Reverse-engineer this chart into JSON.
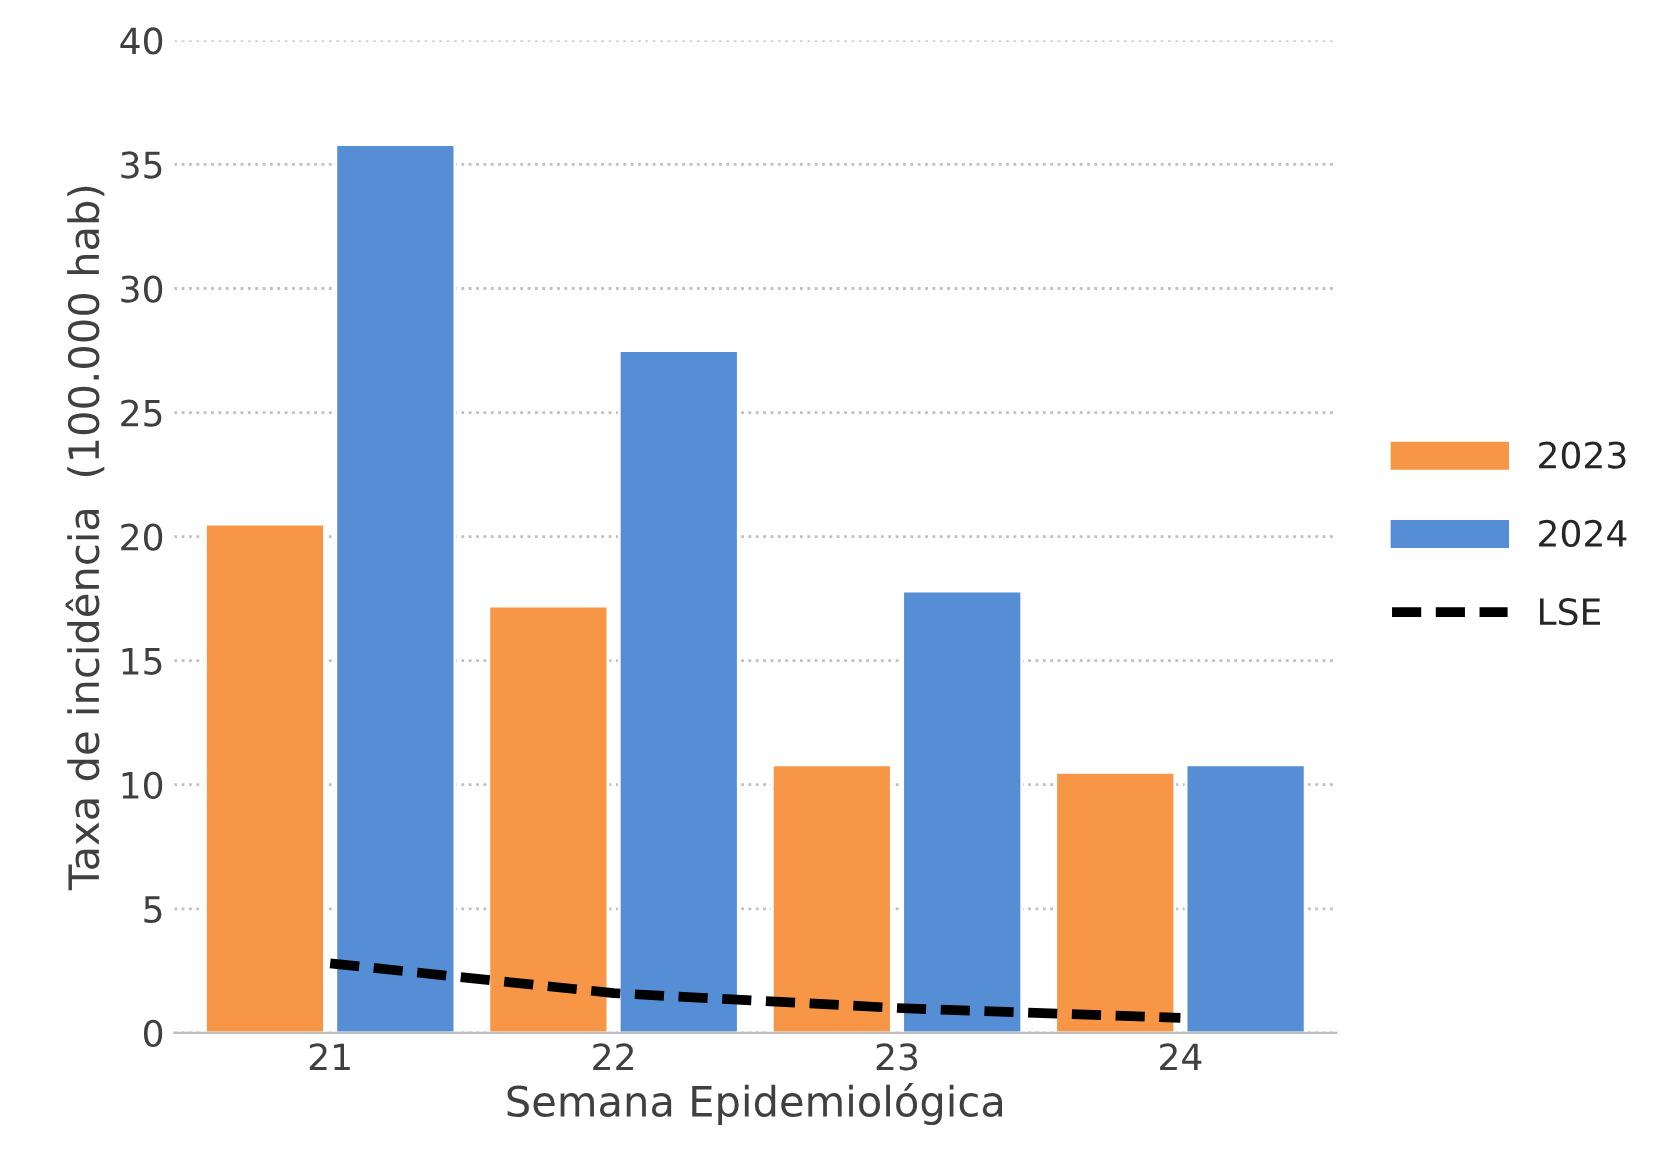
{
  "chart_data": {
    "type": "bar",
    "xlabel": "Semana Epidemiológica",
    "ylabel": "Taxa de incidência  (100.000 hab)",
    "categories": [
      "21",
      "22",
      "23",
      "24"
    ],
    "series": [
      {
        "name": "2023",
        "color": "#f79646",
        "values": [
          20.5,
          17.2,
          10.8,
          10.5
        ]
      },
      {
        "name": "2024",
        "color": "#558ed5",
        "values": [
          35.8,
          27.5,
          17.8,
          10.8
        ]
      },
      {
        "name": "LSE",
        "type": "line",
        "color": "#000000",
        "line_style": "dashed",
        "values": [
          2.8,
          1.6,
          1.0,
          0.6
        ]
      }
    ],
    "ylim": [
      0,
      40
    ],
    "yticks": [
      0,
      5,
      10,
      15,
      20,
      25,
      30,
      35,
      40
    ],
    "grid": "y",
    "legend": "right"
  }
}
